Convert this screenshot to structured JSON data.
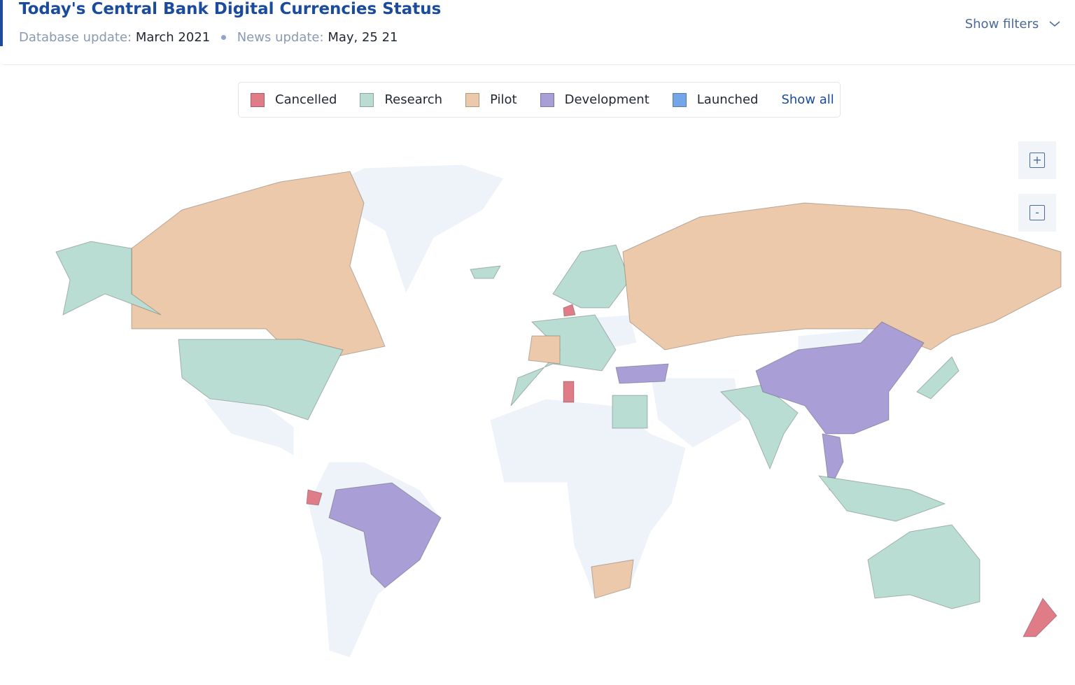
{
  "header": {
    "title": "Today's Central Bank Digital Currencies Status",
    "database_update_label": "Database update:",
    "database_update_value": "March 2021",
    "news_update_label": "News update:",
    "news_update_value": "May, 25 21",
    "show_filters": "Show filters"
  },
  "legend": {
    "items": [
      {
        "label": "Cancelled",
        "color": "#e07c88"
      },
      {
        "label": "Research",
        "color": "#b9ddd3"
      },
      {
        "label": "Pilot",
        "color": "#ecc9ab"
      },
      {
        "label": "Development",
        "color": "#a99fd6"
      },
      {
        "label": "Launched",
        "color": "#72a6e8"
      }
    ],
    "show_all": "Show all"
  },
  "zoom": {
    "in": "+",
    "out": "-"
  }
}
